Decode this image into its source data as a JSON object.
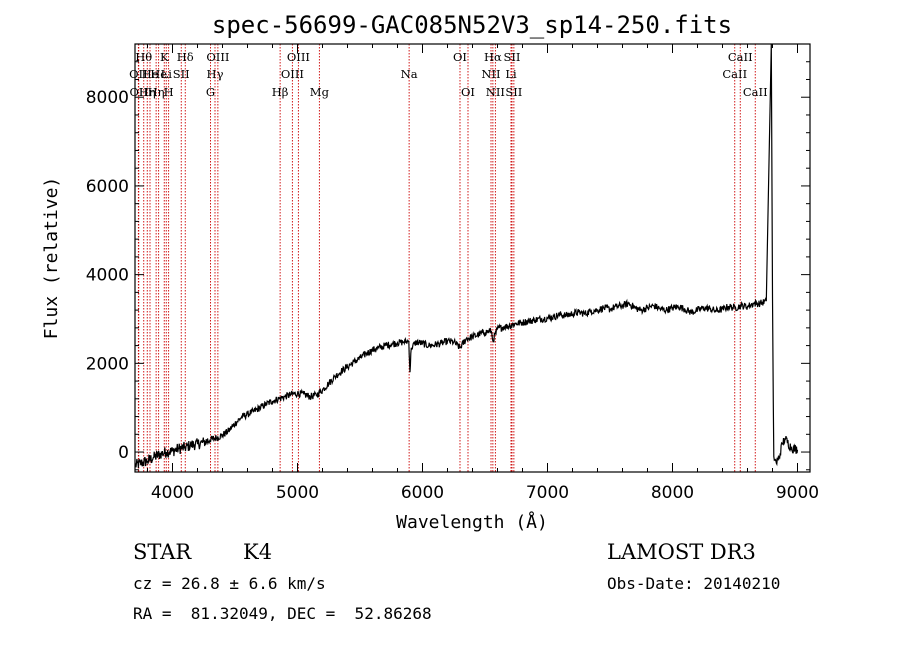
{
  "chart_data": {
    "type": "line",
    "title": "spec-56699-GAC085N52V3_sp14-250.fits",
    "xlabel": "Wavelength (Å)",
    "ylabel": "Flux (relative)",
    "xlim": [
      3700,
      9100
    ],
    "ylim": [
      -450,
      9200
    ],
    "xticks": [
      4000,
      5000,
      6000,
      7000,
      8000,
      9000
    ],
    "yticks": [
      0,
      2000,
      4000,
      6000,
      8000
    ],
    "series": [
      {
        "name": "flux",
        "x": [
          3700,
          3750,
          3800,
          3850,
          3900,
          3950,
          4000,
          4050,
          4100,
          4150,
          4200,
          4250,
          4300,
          4350,
          4400,
          4450,
          4500,
          4550,
          4600,
          4650,
          4700,
          4750,
          4800,
          4850,
          4900,
          4950,
          5000,
          5050,
          5100,
          5150,
          5200,
          5250,
          5300,
          5350,
          5400,
          5450,
          5500,
          5550,
          5600,
          5650,
          5700,
          5750,
          5800,
          5850,
          5890,
          5900,
          5910,
          5950,
          6000,
          6050,
          6100,
          6150,
          6200,
          6250,
          6300,
          6350,
          6400,
          6450,
          6500,
          6550,
          6563,
          6600,
          6650,
          6700,
          6750,
          6800,
          6850,
          6900,
          6950,
          7000,
          7050,
          7100,
          7150,
          7200,
          7250,
          7300,
          7350,
          7400,
          7450,
          7500,
          7550,
          7600,
          7650,
          7700,
          7750,
          7800,
          7850,
          7900,
          7950,
          8000,
          8050,
          8100,
          8150,
          8200,
          8250,
          8300,
          8350,
          8400,
          8450,
          8500,
          8550,
          8600,
          8650,
          8700,
          8750,
          8790,
          8800,
          8810,
          8830,
          8850,
          8880,
          8900,
          8950,
          9000
        ],
        "y": [
          -300,
          -250,
          -200,
          -120,
          -50,
          0,
          20,
          80,
          100,
          160,
          180,
          220,
          280,
          320,
          380,
          480,
          640,
          780,
          850,
          920,
          1000,
          1080,
          1150,
          1200,
          1250,
          1300,
          1320,
          1300,
          1250,
          1280,
          1400,
          1550,
          1700,
          1820,
          1920,
          2030,
          2120,
          2220,
          2300,
          2350,
          2400,
          2430,
          2460,
          2480,
          2500,
          1800,
          2350,
          2480,
          2450,
          2400,
          2420,
          2450,
          2500,
          2480,
          2350,
          2550,
          2600,
          2650,
          2700,
          2730,
          2500,
          2780,
          2820,
          2850,
          2900,
          2920,
          2950,
          2980,
          3000,
          3020,
          3050,
          3100,
          3080,
          3120,
          3150,
          3120,
          3180,
          3200,
          3250,
          3220,
          3280,
          3300,
          3350,
          3250,
          3200,
          3250,
          3300,
          3230,
          3200,
          3250,
          3280,
          3220,
          3150,
          3200,
          3250,
          3230,
          3180,
          3220,
          3280,
          3250,
          3300,
          3280,
          3350,
          3350,
          3400,
          9200,
          3500,
          -100,
          -250,
          -150,
          200,
          300,
          100,
          50
        ]
      }
    ],
    "spectral_lines": [
      {
        "wl": 3727,
        "label": "OII",
        "row": 1
      },
      {
        "wl": 3730,
        "label": "OII",
        "row": 2
      },
      {
        "wl": 3770,
        "label": "Hθ",
        "row": 0
      },
      {
        "wl": 3798,
        "label": "Hη",
        "row": 2
      },
      {
        "wl": 3820,
        "label": "He",
        "row": 1
      },
      {
        "wl": 3869,
        "label": "Hη",
        "row": 2
      },
      {
        "wl": 3889,
        "label": "He",
        "row": 1
      },
      {
        "wl": 3934,
        "label": "K",
        "row": 0
      },
      {
        "wl": 3950,
        "label": "Li",
        "row": 1
      },
      {
        "wl": 3969,
        "label": "H",
        "row": 2
      },
      {
        "wl": 4070,
        "label": "SII",
        "row": 1
      },
      {
        "wl": 4102,
        "label": "Hδ",
        "row": 0
      },
      {
        "wl": 4304,
        "label": "G",
        "row": 2
      },
      {
        "wl": 4340,
        "label": "Hγ",
        "row": 1
      },
      {
        "wl": 4363,
        "label": "OIII",
        "row": 0
      },
      {
        "wl": 4861,
        "label": "Hβ",
        "row": 2
      },
      {
        "wl": 4959,
        "label": "OIII",
        "row": 1
      },
      {
        "wl": 5007,
        "label": "OIII",
        "row": 0
      },
      {
        "wl": 5175,
        "label": "Mg",
        "row": 2
      },
      {
        "wl": 5893,
        "label": "Na",
        "row": 1
      },
      {
        "wl": 6300,
        "label": "OI",
        "row": 0
      },
      {
        "wl": 6364,
        "label": "OI",
        "row": 2
      },
      {
        "wl": 6548,
        "label": "NII",
        "row": 1
      },
      {
        "wl": 6563,
        "label": "Hα",
        "row": 0
      },
      {
        "wl": 6583,
        "label": "NII",
        "row": 2
      },
      {
        "wl": 6708,
        "label": "Li",
        "row": 1
      },
      {
        "wl": 6716,
        "label": "SII",
        "row": 0
      },
      {
        "wl": 6731,
        "label": "SII",
        "row": 2
      },
      {
        "wl": 8498,
        "label": "CaII",
        "row": 1
      },
      {
        "wl": 8542,
        "label": "CaII",
        "row": 0
      },
      {
        "wl": 8662,
        "label": "CaII",
        "row": 2
      }
    ]
  },
  "info": {
    "object_class": "STAR",
    "subclass": "K4",
    "velocity": "cz = 26.8 ± 6.6 km/s",
    "coords": "RA =  81.32049, DEC =  52.86268",
    "survey": "LAMOST DR3",
    "obs_date": "Obs-Date: 20140210"
  },
  "colors": {
    "line_marker": "#cc0000",
    "spectrum": "#000000"
  }
}
